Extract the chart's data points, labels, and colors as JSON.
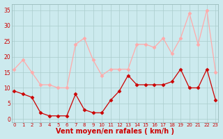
{
  "x": [
    0,
    1,
    2,
    3,
    4,
    5,
    6,
    7,
    8,
    9,
    10,
    11,
    12,
    13,
    14,
    15,
    16,
    17,
    18,
    19,
    20,
    21,
    22,
    23
  ],
  "wind_avg": [
    9,
    8,
    7,
    2,
    1,
    1,
    1,
    8,
    3,
    2,
    2,
    6,
    9,
    14,
    11,
    11,
    11,
    11,
    12,
    16,
    10,
    10,
    16,
    6
  ],
  "wind_gust": [
    16,
    19,
    15,
    11,
    11,
    10,
    10,
    24,
    26,
    19,
    14,
    16,
    16,
    16,
    24,
    24,
    23,
    26,
    21,
    26,
    34,
    24,
    35,
    15
  ],
  "avg_color": "#cc0000",
  "gust_color": "#ffaaaa",
  "bg_color": "#cceaee",
  "grid_color": "#aacccc",
  "xlabel": "Vent moyen/en rafales ( km/h )",
  "xlabel_color": "#cc0000",
  "yticks": [
    0,
    5,
    10,
    15,
    20,
    25,
    30,
    35
  ],
  "xlim": [
    -0.3,
    23.3
  ],
  "ylim": [
    -1,
    37
  ]
}
